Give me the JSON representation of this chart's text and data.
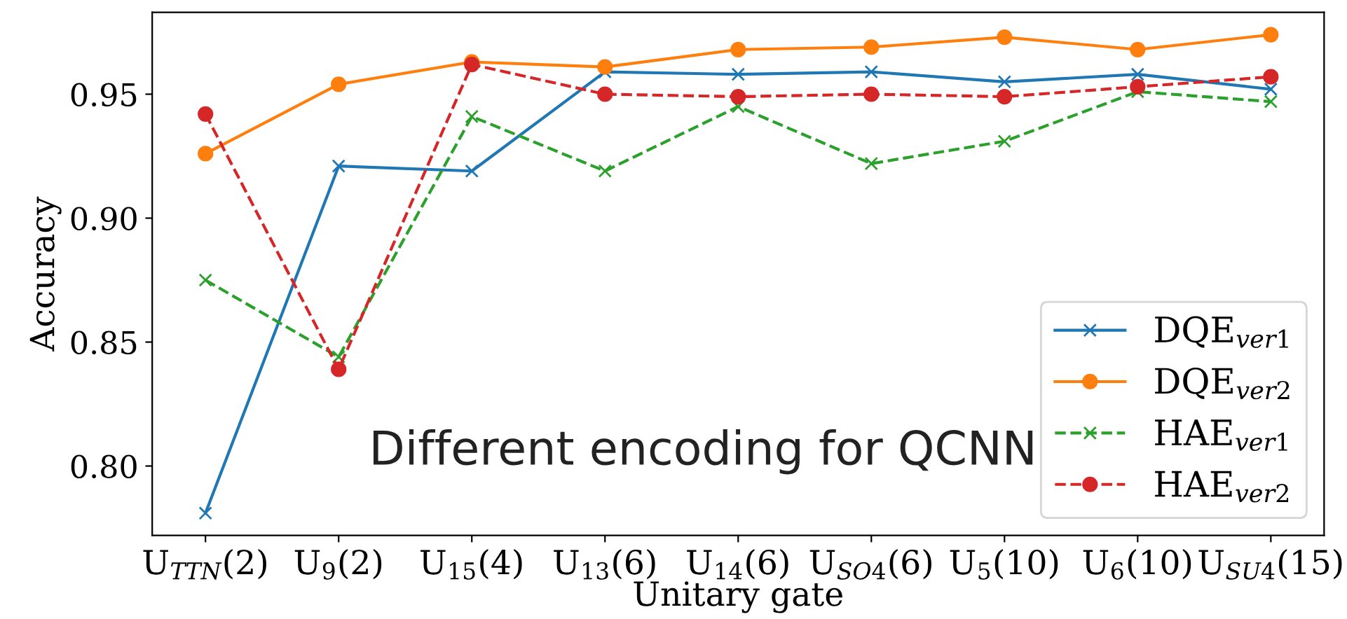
{
  "chart_data": {
    "type": "line",
    "xlabel": "Unitary gate",
    "ylabel": "Accuracy",
    "categories": [
      "U$_{TTN}$(2)",
      "U$_{9}$(2)",
      "U$_{15}$(4)",
      "U$_{13}$(6)",
      "U$_{14}$(6)",
      "U$_{SO4}$(6)",
      "U$_{5}$(10)",
      "U$_{6}$(10)",
      "U$_{SU4}$(15)"
    ],
    "series": [
      {
        "name": "DQE$_{ver1}$",
        "color": "#1f77b4",
        "marker": "cross",
        "line_style": "solid",
        "values": [
          0.781,
          0.921,
          0.919,
          0.959,
          0.958,
          0.959,
          0.955,
          0.958,
          0.952
        ]
      },
      {
        "name": "DQE$_{ver2}$",
        "color": "#ff7f0e",
        "marker": "circle",
        "line_style": "solid",
        "values": [
          0.926,
          0.954,
          0.963,
          0.961,
          0.968,
          0.969,
          0.973,
          0.968,
          0.974
        ]
      },
      {
        "name": "HAE$_{ver1}$",
        "color": "#2ca02c",
        "marker": "cross",
        "line_style": "dashed",
        "values": [
          0.875,
          0.844,
          0.941,
          0.919,
          0.945,
          0.922,
          0.931,
          0.951,
          0.947
        ]
      },
      {
        "name": "HAE$_{ver2}$",
        "color": "#d62728",
        "marker": "circle",
        "line_style": "dashed",
        "values": [
          0.942,
          0.839,
          0.962,
          0.95,
          0.949,
          0.95,
          0.949,
          0.953,
          0.957
        ]
      }
    ],
    "ylim": [
      0.772,
      0.983
    ],
    "yticks": [
      {
        "value": 0.8,
        "label": "0.80"
      },
      {
        "value": 0.85,
        "label": "0.85"
      },
      {
        "value": 0.9,
        "label": "0.90"
      },
      {
        "value": 0.95,
        "label": "0.95"
      }
    ],
    "grid": false,
    "legend": "bottom right",
    "annotations": [
      "Different encoding for QCNN"
    ]
  }
}
